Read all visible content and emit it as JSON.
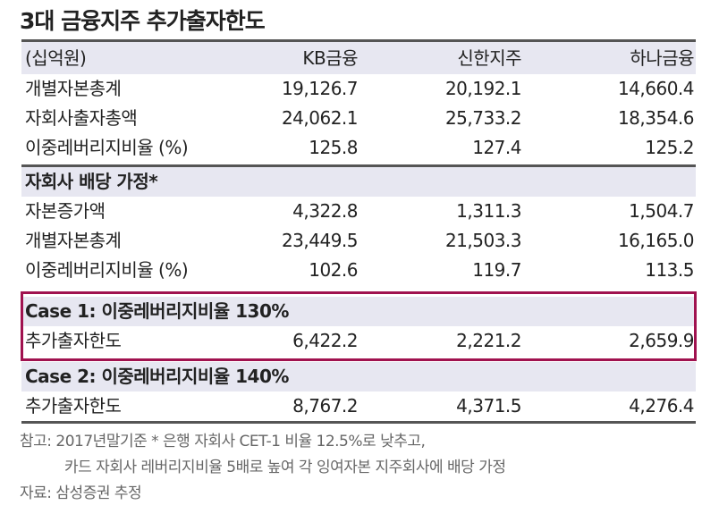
{
  "title": "3대 금융지주 추가출자한도",
  "header": [
    "(십억원)",
    "KB금융",
    "신한지주",
    "하나금융"
  ],
  "section1": [
    [
      "개별자본총계",
      "19,126.7",
      "20,192.1",
      "14,660.4"
    ],
    [
      "자회사출자총액",
      "24,062.1",
      "25,733.2",
      "18,354.6"
    ],
    [
      "이중레버리지비율 (%)",
      "125.8",
      "127.4",
      "125.2"
    ]
  ],
  "section2_title": "자회사 배당 가정*",
  "section2": [
    [
      "자본증가액",
      "4,322.8",
      "1,311.3",
      "1,504.7"
    ],
    [
      "개별자본총계",
      "23,449.5",
      "21,503.3",
      "16,165.0"
    ],
    [
      "이중레버리지비율 (%)",
      "102.6",
      "119.7",
      "113.5"
    ]
  ],
  "case1_title": "Case 1: 이중레버리지비율 130%",
  "case1": [
    "추가출자한도",
    "6,422.2",
    "2,221.2",
    "2,659.9"
  ],
  "case2_title": "Case 2: 이중레버리지비율 140%",
  "case2": [
    "추가출자한도",
    "8,767.2",
    "4,371.5",
    "4,276.4"
  ],
  "notes": [
    "참고: 2017년말기준 * 은행 자회사 CET-1 비율 12.5%로 낮추고,",
    "카드 자회사 레버리지비율 5배로 높여 각 잉여자본 지주회사에 배당 가정",
    "자료: 삼성증권 추정"
  ],
  "colors": {
    "highlight_border": "#a0124f",
    "shade": "#e7e7f1"
  }
}
